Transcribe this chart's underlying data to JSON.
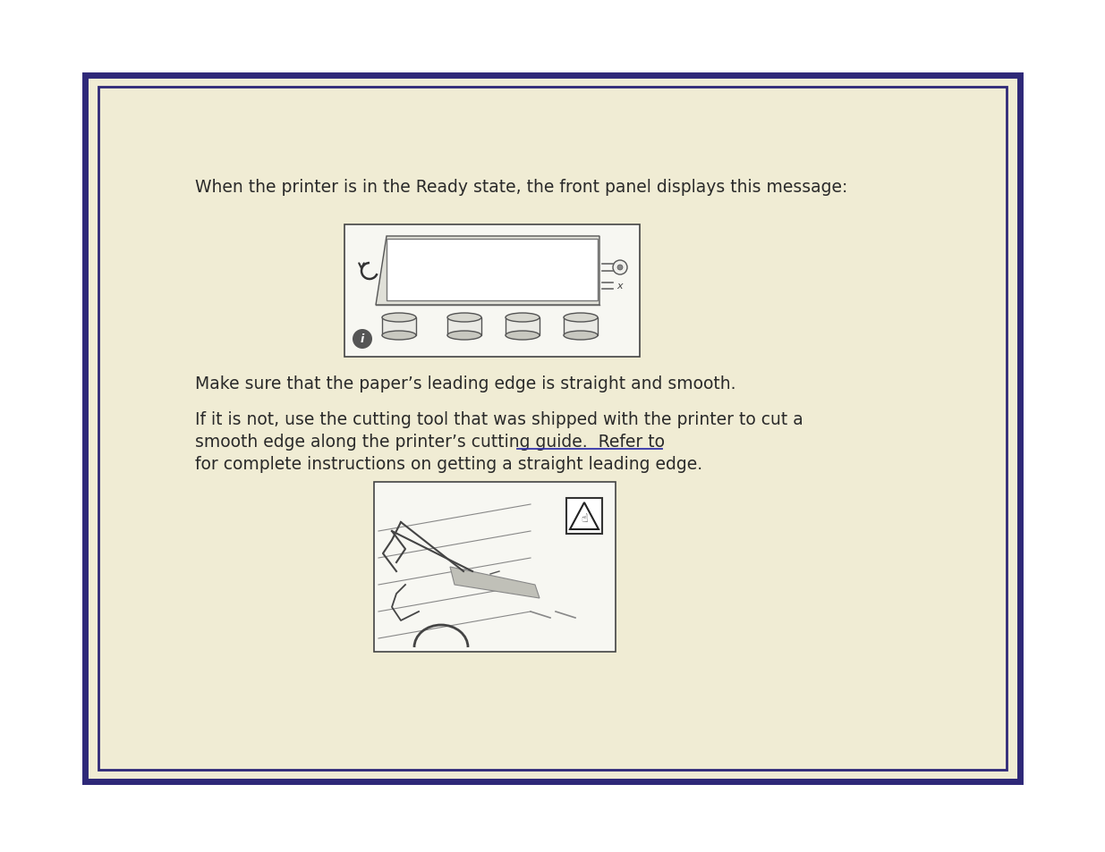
{
  "bg_outer": "#ffffff",
  "bg_inner": "#f0ecd4",
  "border_color": "#2e2878",
  "text_color": "#2a2a2a",
  "underline_color": "#3333aa",
  "line1": "When the printer is in the Ready state, the front panel displays this message:",
  "line2": "Make sure that the paper’s leading edge is straight and smooth.",
  "line3a": "If it is not, use the cutting tool that was shipped with the printer to cut a",
  "line3b": "smooth edge along the printer’s cutting guide.  Refer to",
  "line3c": "for complete instructions on getting a straight leading edge.",
  "font_size": 13.5,
  "fig_width": 12.35,
  "fig_height": 9.54,
  "dpi": 100
}
